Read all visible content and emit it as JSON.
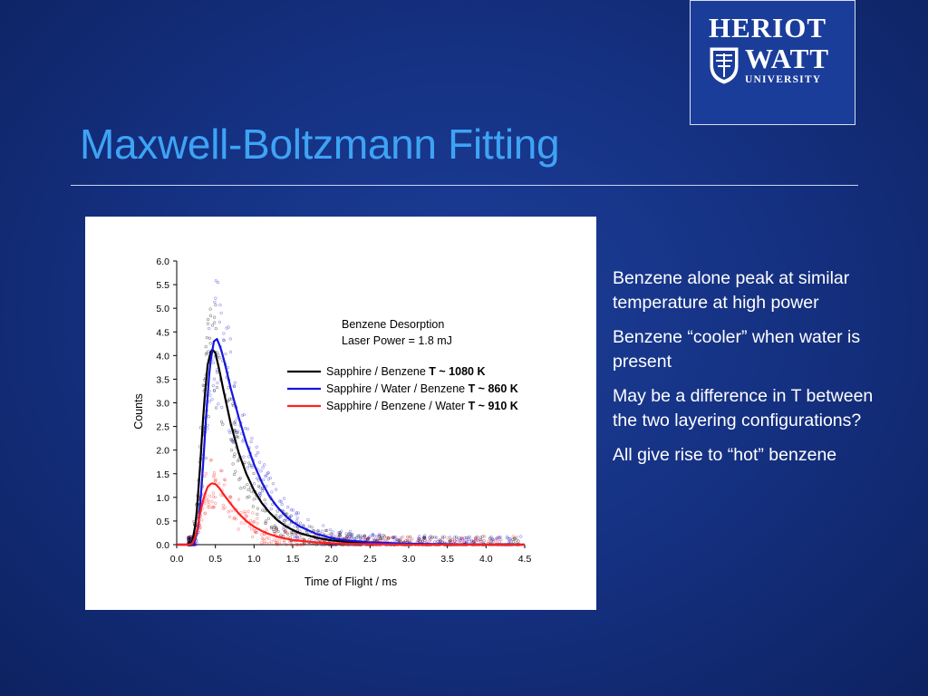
{
  "slide": {
    "title": "Maxwell-Boltzmann Fitting",
    "bullets": [
      "Benzene alone peak at similar temperature at high power",
      "Benzene “cooler” when water is present",
      "May be a difference in T between the two layering configurations?",
      "All give rise to “hot” benzene"
    ]
  },
  "logo": {
    "line1": "HERIOT",
    "line2": "WATT",
    "line3": "UNIVERSITY"
  },
  "colors": {
    "background": "#142f7e",
    "title": "#3ea3f5",
    "series_black": "#000000",
    "series_blue": "#1515e0",
    "series_red": "#ff2020"
  },
  "chart_data": {
    "type": "line",
    "title": "",
    "xlabel": "Time of Flight / ms",
    "ylabel": "Counts",
    "xlim": [
      0.0,
      4.5
    ],
    "ylim": [
      0.0,
      6.0
    ],
    "xticks": [
      "0.0",
      "0.5",
      "1.0",
      "1.5",
      "2.0",
      "2.5",
      "3.0",
      "3.5",
      "4.0",
      "4.5"
    ],
    "yticks": [
      "0.0",
      "0.5",
      "1.0",
      "1.5",
      "2.0",
      "2.5",
      "3.0",
      "3.5",
      "4.0",
      "4.5",
      "5.0",
      "5.5",
      "6.0"
    ],
    "annotation": [
      "Benzene Desorption",
      "Laser Power = 1.8 mJ"
    ],
    "legend_position": "top-right",
    "series": [
      {
        "name": "Sapphire / Benzene",
        "temp_label": "T ~ 1080 K",
        "color": "#000000",
        "x": [
          0.0,
          0.15,
          0.2,
          0.25,
          0.3,
          0.35,
          0.4,
          0.45,
          0.5,
          0.55,
          0.6,
          0.7,
          0.8,
          0.9,
          1.0,
          1.1,
          1.2,
          1.3,
          1.4,
          1.5,
          1.6,
          1.8,
          2.0,
          2.2,
          2.5,
          3.0,
          3.5,
          4.0,
          4.5
        ],
        "y": [
          0.0,
          0.0,
          0.05,
          0.5,
          1.6,
          2.9,
          3.8,
          4.15,
          4.05,
          3.7,
          3.3,
          2.55,
          1.95,
          1.5,
          1.15,
          0.88,
          0.68,
          0.52,
          0.4,
          0.31,
          0.24,
          0.15,
          0.09,
          0.06,
          0.03,
          0.01,
          0.0,
          0.0,
          0.0
        ]
      },
      {
        "name": "Sapphire / Water / Benzene",
        "temp_label": "T ~ 860 K",
        "color": "#1515e0",
        "x": [
          0.0,
          0.18,
          0.23,
          0.28,
          0.33,
          0.38,
          0.43,
          0.48,
          0.52,
          0.57,
          0.62,
          0.7,
          0.8,
          0.9,
          1.0,
          1.1,
          1.2,
          1.3,
          1.4,
          1.5,
          1.6,
          1.8,
          2.0,
          2.2,
          2.5,
          3.0,
          3.5,
          4.0,
          4.5
        ],
        "y": [
          0.0,
          0.0,
          0.05,
          0.4,
          1.4,
          2.7,
          3.8,
          4.3,
          4.35,
          4.15,
          3.85,
          3.3,
          2.7,
          2.15,
          1.7,
          1.32,
          1.02,
          0.8,
          0.62,
          0.48,
          0.38,
          0.23,
          0.14,
          0.09,
          0.05,
          0.02,
          0.01,
          0.0,
          0.0
        ]
      },
      {
        "name": "Sapphire / Benzene / Water",
        "temp_label": "T ~ 910 K",
        "color": "#ff2020",
        "x": [
          0.0,
          0.15,
          0.2,
          0.25,
          0.3,
          0.35,
          0.4,
          0.45,
          0.5,
          0.55,
          0.6,
          0.7,
          0.8,
          0.9,
          1.0,
          1.1,
          1.2,
          1.3,
          1.4,
          1.5,
          1.6,
          1.8,
          2.0,
          2.2,
          2.5,
          3.0,
          3.5,
          4.0,
          4.5
        ],
        "y": [
          0.0,
          0.0,
          0.02,
          0.2,
          0.65,
          1.0,
          1.22,
          1.3,
          1.28,
          1.2,
          1.08,
          0.86,
          0.66,
          0.5,
          0.38,
          0.29,
          0.22,
          0.17,
          0.13,
          0.1,
          0.08,
          0.05,
          0.03,
          0.02,
          0.01,
          0.0,
          0.0,
          0.0,
          0.0
        ]
      }
    ]
  }
}
